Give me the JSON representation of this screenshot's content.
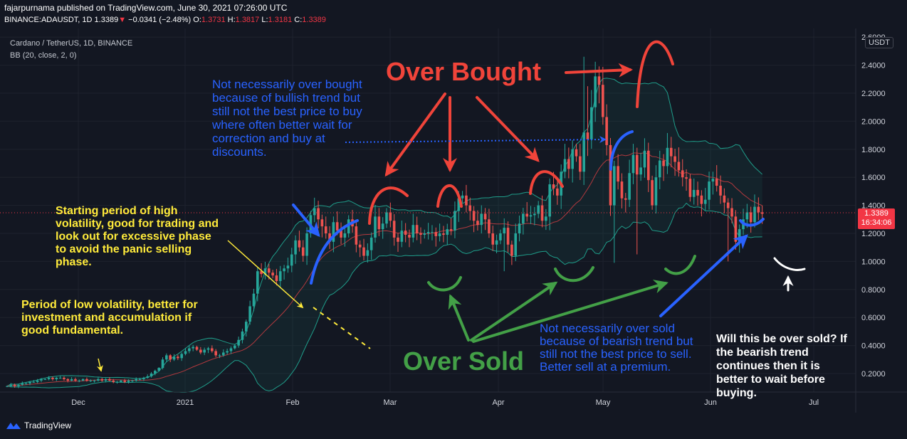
{
  "header": {
    "publisher": "fajarpurnama published on TradingView.com, June 30, 2021 07:26:00 UTC",
    "symbol": "BINANCE:ADAUSDT, 1D",
    "last": "1.3389",
    "change": "−0.0341 (−2.48%)",
    "o_label": "O:",
    "o_value": "1.3731",
    "h_label": "H:",
    "h_value": "1.3817",
    "l_label": "L:",
    "l_value": "1.3181",
    "c_label": "C:",
    "c_value": "1.3389"
  },
  "legend": {
    "series_name": "Cardano / TetherUS, 1D, BINANCE",
    "indicator": "BB (20, close, 2, 0)"
  },
  "price_axis": {
    "currency": "USDT",
    "current_price": "1.3389",
    "countdown": "16:34:06"
  },
  "brand": {
    "name": "TradingView"
  },
  "colors": {
    "background": "#131722",
    "up": "#26a69a",
    "down": "#ef5350",
    "bb_basis": "#b2393e",
    "bb_band": "#1f9d8a",
    "annotation_red": "#f0443a",
    "annotation_blue": "#2962ff",
    "annotation_green": "#43a047",
    "annotation_yellow": "#ffeb3b",
    "annotation_white": "#ffffff"
  },
  "annotations": {
    "over_bought": "Over Bought",
    "over_sold": "Over Sold",
    "blue_top": "Not necessarily over bought because of bullish trend but still not the best price to buy where often better wait for correction and buy at discounts.",
    "blue_bottom": "Not necessarily over sold because of bearish trend but still not the best price to sell. Better sell at a premium.",
    "yellow_mid": "Starting period of high volatility, good for trading and look out for excessive phase to avoid the panic selling phase.",
    "yellow_low": "Period of low volatility, better for investment and accumulation if good fundamental.",
    "white_right": "Will this be over sold? If the bearish trend continues then it is better to wait before buying."
  },
  "chart_data": {
    "type": "candlestick",
    "title": "Cardano / TetherUS, 1D, BINANCE",
    "indicator": "Bollinger Bands (20, close, 2, 0)",
    "x_tick_labels": [
      "Dec",
      "2021",
      "Feb",
      "Mar",
      "Apr",
      "May",
      "Jun",
      "Jul"
    ],
    "y_tick_labels": [
      "0.2000",
      "0.4000",
      "0.6000",
      "0.8000",
      "1.0000",
      "1.2000",
      "1.4000",
      "1.6000",
      "1.8000",
      "2.0000",
      "2.2000",
      "2.4000",
      "2.6000"
    ],
    "ylim": [
      0.05,
      2.65
    ],
    "closes": [
      0.11,
      0.12,
      0.11,
      0.12,
      0.13,
      0.13,
      0.14,
      0.14,
      0.15,
      0.16,
      0.16,
      0.17,
      0.16,
      0.17,
      0.17,
      0.16,
      0.15,
      0.16,
      0.15,
      0.15,
      0.16,
      0.15,
      0.15,
      0.15,
      0.16,
      0.15,
      0.16,
      0.15,
      0.14,
      0.14,
      0.15,
      0.14,
      0.15,
      0.15,
      0.16,
      0.16,
      0.17,
      0.18,
      0.2,
      0.22,
      0.24,
      0.3,
      0.33,
      0.3,
      0.32,
      0.31,
      0.34,
      0.36,
      0.38,
      0.39,
      0.37,
      0.35,
      0.37,
      0.38,
      0.36,
      0.33,
      0.33,
      0.35,
      0.36,
      0.38,
      0.4,
      0.44,
      0.5,
      0.57,
      0.68,
      0.77,
      0.93,
      0.91,
      0.95,
      0.92,
      0.9,
      0.86,
      0.93,
      0.95,
      0.97,
      1.05,
      1.15,
      1.1,
      1.04,
      1.2,
      1.33,
      1.38,
      1.3,
      1.25,
      1.2,
      1.14,
      1.28,
      1.22,
      1.17,
      1.2,
      1.3,
      1.25,
      1.12,
      1.1,
      1.04,
      1.08,
      1.17,
      1.32,
      1.23,
      1.27,
      1.35,
      1.29,
      1.17,
      1.14,
      1.22,
      1.19,
      1.17,
      1.26,
      1.2,
      1.19,
      1.2,
      1.21,
      1.21,
      1.18,
      1.2,
      1.19,
      1.23,
      1.22,
      1.36,
      1.45,
      1.47,
      1.4,
      1.36,
      1.29,
      1.26,
      1.34,
      1.3,
      1.2,
      1.12,
      1.15,
      1.2,
      1.24,
      1.12,
      1.04,
      1.2,
      1.27,
      1.34,
      1.32,
      1.33,
      1.34,
      1.4,
      1.29,
      1.32,
      1.55,
      1.52,
      1.47,
      1.64,
      1.73,
      1.66,
      1.8,
      1.75,
      1.64,
      1.92,
      1.87,
      2.1,
      2.32,
      2.26,
      2.03,
      1.83,
      1.4,
      1.68,
      1.57,
      1.45,
      1.44,
      1.63,
      1.76,
      1.62,
      1.67,
      1.79,
      1.58,
      1.4,
      1.6,
      1.72,
      1.68,
      1.81,
      1.75,
      1.71,
      1.65,
      1.6,
      1.59,
      1.46,
      1.51,
      1.47,
      1.41,
      1.44,
      1.57,
      1.59,
      1.54,
      1.47,
      1.42,
      1.38,
      1.32,
      1.14,
      1.23,
      1.3,
      1.35,
      1.28,
      1.39,
      1.35,
      1.34
    ]
  }
}
